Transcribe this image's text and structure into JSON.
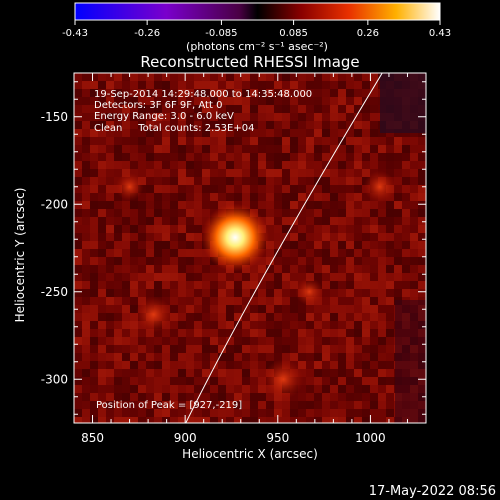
{
  "colorbar": {
    "tick_labels": [
      "-0.43",
      "-0.26",
      "-0.085",
      "0.085",
      "0.26",
      "0.43"
    ],
    "tick_values": [
      -0.43,
      -0.26,
      -0.085,
      0.085,
      0.26,
      0.43
    ],
    "units": "(photons cm⁻² s⁻¹ asec⁻²)"
  },
  "chart_data": {
    "type": "heatmap",
    "title": "Reconstructed RHESSI Image",
    "xlabel": "Heliocentric X (arcsec)",
    "ylabel": "Heliocentric Y (arcsec)",
    "xlim": [
      840,
      1030
    ],
    "ylim": [
      -325,
      -125
    ],
    "x_ticks": [
      850,
      900,
      950,
      1000
    ],
    "x_tick_labels": [
      "850",
      "900",
      "950",
      "1000"
    ],
    "y_ticks": [
      -150,
      -200,
      -250,
      -300
    ],
    "y_tick_labels": [
      "-150",
      "-200",
      "-250",
      "-300"
    ],
    "peak": {
      "x": 927,
      "y": -219
    },
    "info_lines": [
      "19-Sep-2014 14:29:48.000 to 14:35:48.000",
      "Detectors: 3F 6F 9F, Att 0",
      "Energy Range: 3.0 - 6.0 keV",
      "Clean     Total counts: 2.53E+04"
    ],
    "peak_label": "Position of Peak = [927,-219]",
    "limb_color": "#ffffff"
  },
  "footer": {
    "timestamp": "17-May-2022 08:56"
  }
}
